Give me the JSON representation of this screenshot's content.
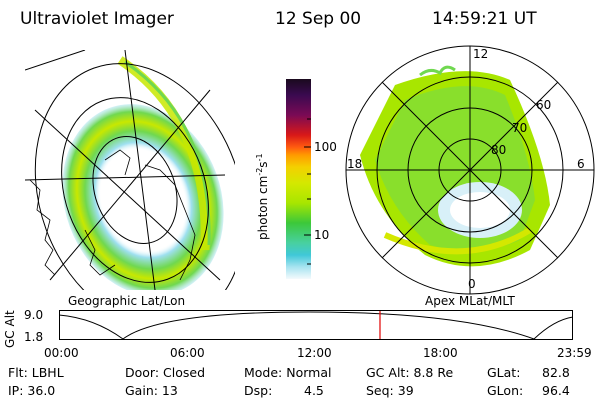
{
  "header": {
    "instrument": "Ultraviolet Imager",
    "date": "12 Sep 00",
    "time": "14:59:21 UT"
  },
  "left_panel": {
    "caption": "Geographic Lat/Lon"
  },
  "right_panel": {
    "caption": "Apex MLat/MLT",
    "mlt_labels": {
      "top": "12",
      "right": "6",
      "bottom": "0",
      "left": "18"
    },
    "lat_labels": [
      "60",
      "70",
      "80"
    ]
  },
  "colorbar": {
    "unit": "photon cm",
    "unit_exp1": "-2",
    "unit_s": "s",
    "unit_exp2": "-1",
    "ticks": [
      "100",
      "10"
    ],
    "colors": [
      "#1a0a1e",
      "#3a0a50",
      "#7a0a55",
      "#b00a2a",
      "#d81818",
      "#ff5a10",
      "#ff9a00",
      "#f4d000",
      "#d4e800",
      "#a8e600",
      "#70d850",
      "#3cc83a",
      "#48d0a0",
      "#40c8d8",
      "#a8e4f0",
      "#f4fafc"
    ]
  },
  "timeline": {
    "axis_label": "GC Alt",
    "y_max": "9.0",
    "y_min": "1.8",
    "ticks": [
      "00:00",
      "06:00",
      "12:00",
      "18:00",
      "23:59"
    ],
    "current_fraction": 0.6245
  },
  "status": {
    "row1": {
      "flt": "Flt: LBHL",
      "door": "Door: Closed",
      "mode": "Mode: Normal",
      "gcalt": "GC Alt: 8.8 Re",
      "glat_label": "GLat:",
      "glat_value": "82.8"
    },
    "row2": {
      "ip": "IP: 36.0",
      "gain": "Gain: 13",
      "dsp_label": "Dsp:",
      "dsp_value": "4.5",
      "seq": "Seq: 39",
      "glon_label": "GLon:",
      "glon_value": "96.4"
    }
  }
}
